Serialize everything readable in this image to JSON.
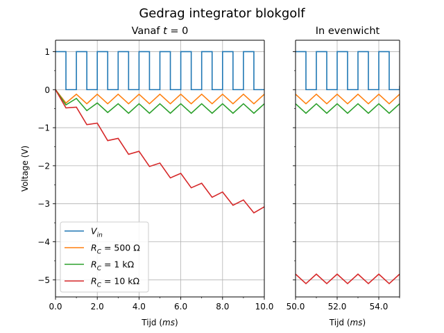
{
  "figure": {
    "title": "Gedrag integrator blokgolf"
  },
  "chart_data": [
    {
      "type": "line",
      "title": "Vanaf t = 0",
      "xlabel": "Tijd (ms)",
      "ylabel": "Voltage (V)",
      "xlim": [
        0.0,
        10.0
      ],
      "ylim": [
        -5.45,
        1.3
      ],
      "x_ticks": [
        {
          "value": 0.0,
          "label": "0.0"
        },
        {
          "value": 2.0,
          "label": "2.0"
        },
        {
          "value": 4.0,
          "label": "4.0"
        },
        {
          "value": 6.0,
          "label": "6.0"
        },
        {
          "value": 8.0,
          "label": "8.0"
        },
        {
          "value": 10.0,
          "label": "10.0"
        }
      ],
      "x_minor_ticks": [
        1,
        3,
        5,
        7,
        9
      ],
      "y_ticks": [
        {
          "value": 1,
          "label": "1"
        },
        {
          "value": 0,
          "label": "0"
        },
        {
          "value": -1,
          "label": "−1"
        },
        {
          "value": -2,
          "label": "−2"
        },
        {
          "value": -3,
          "label": "−3"
        },
        {
          "value": -4,
          "label": "−4"
        },
        {
          "value": -5,
          "label": "−5"
        }
      ],
      "y_minor_ticks": [
        0.5,
        -0.5,
        -1.5,
        -2.5,
        -3.5,
        -4.5
      ],
      "grid": true,
      "legend_position": "lower-left",
      "series": [
        {
          "key": "vin",
          "name": "V_in",
          "color": "#1f77b4",
          "step": true,
          "x": [
            0,
            0.5,
            1,
            1.5,
            2,
            2.5,
            3,
            3.5,
            4,
            4.5,
            5,
            5.5,
            6,
            6.5,
            7,
            7.5,
            8,
            8.5,
            9,
            9.5,
            10
          ],
          "y": [
            1,
            0,
            1,
            0,
            1,
            0,
            1,
            0,
            1,
            0,
            1,
            0,
            1,
            0,
            1,
            0,
            1,
            0,
            1,
            0,
            0
          ]
        },
        {
          "key": "r500",
          "name": "R_C = 500 Ω",
          "color": "#ff7f0e",
          "x": [
            0,
            0.5,
            1,
            1.5,
            2,
            2.5,
            3,
            3.5,
            4,
            4.5,
            5,
            5.5,
            6,
            6.5,
            7,
            7.5,
            8,
            8.5,
            9,
            9.5,
            10
          ],
          "y": [
            0,
            -0.35,
            -0.12,
            -0.37,
            -0.12,
            -0.37,
            -0.12,
            -0.37,
            -0.12,
            -0.37,
            -0.12,
            -0.37,
            -0.12,
            -0.37,
            -0.12,
            -0.37,
            -0.12,
            -0.37,
            -0.12,
            -0.37,
            -0.12
          ]
        },
        {
          "key": "r1k",
          "name": "R_C = 1 kΩ",
          "color": "#2ca02c",
          "x": [
            0,
            0.5,
            1,
            1.5,
            2,
            2.5,
            3,
            3.5,
            4,
            4.5,
            5,
            5.5,
            6,
            6.5,
            7,
            7.5,
            8,
            8.5,
            9,
            9.5,
            10
          ],
          "y": [
            0,
            -0.4,
            -0.23,
            -0.55,
            -0.35,
            -0.6,
            -0.37,
            -0.62,
            -0.37,
            -0.62,
            -0.37,
            -0.62,
            -0.37,
            -0.62,
            -0.37,
            -0.62,
            -0.37,
            -0.62,
            -0.37,
            -0.62,
            -0.37
          ]
        },
        {
          "key": "r10k",
          "name": "R_C = 10 kΩ",
          "color": "#d62728",
          "x": [
            0,
            0.5,
            1,
            1.5,
            2,
            2.5,
            3,
            3.5,
            4,
            4.5,
            5,
            5.5,
            6,
            6.5,
            7,
            7.5,
            8,
            8.5,
            9,
            9.5,
            10
          ],
          "y": [
            0,
            -0.48,
            -0.46,
            -0.92,
            -0.88,
            -1.34,
            -1.28,
            -1.7,
            -1.62,
            -2.02,
            -1.93,
            -2.32,
            -2.2,
            -2.58,
            -2.46,
            -2.83,
            -2.69,
            -3.04,
            -2.9,
            -3.24,
            -3.08
          ]
        }
      ]
    },
    {
      "type": "line",
      "title": "In evenwicht",
      "xlabel": "Tijd (ms)",
      "ylabel": "",
      "xlim": [
        50.0,
        55.0
      ],
      "ylim": [
        -5.45,
        1.3
      ],
      "x_ticks": [
        {
          "value": 50.0,
          "label": "50.0"
        },
        {
          "value": 52.0,
          "label": "52.0"
        },
        {
          "value": 54.0,
          "label": "54.0"
        }
      ],
      "x_minor_ticks": [
        51,
        53,
        55
      ],
      "y_ticks": [
        {
          "value": 1,
          "label": ""
        },
        {
          "value": 0,
          "label": ""
        },
        {
          "value": -1,
          "label": ""
        },
        {
          "value": -2,
          "label": ""
        },
        {
          "value": -3,
          "label": ""
        },
        {
          "value": -4,
          "label": ""
        },
        {
          "value": -5,
          "label": ""
        }
      ],
      "y_minor_ticks": [
        0.5,
        -0.5,
        -1.5,
        -2.5,
        -3.5,
        -4.5
      ],
      "grid": true,
      "series": [
        {
          "key": "vin",
          "color": "#1f77b4",
          "step": true,
          "x": [
            50,
            50.5,
            51,
            51.5,
            52,
            52.5,
            53,
            53.5,
            54,
            54.5,
            55
          ],
          "y": [
            1,
            0,
            1,
            0,
            1,
            0,
            1,
            0,
            1,
            0,
            0.1
          ]
        },
        {
          "key": "r500",
          "color": "#ff7f0e",
          "x": [
            50,
            50.5,
            51,
            51.5,
            52,
            52.5,
            53,
            53.5,
            54,
            54.5,
            55
          ],
          "y": [
            -0.12,
            -0.37,
            -0.12,
            -0.37,
            -0.12,
            -0.37,
            -0.12,
            -0.37,
            -0.12,
            -0.37,
            -0.12
          ]
        },
        {
          "key": "r1k",
          "color": "#2ca02c",
          "x": [
            50,
            50.5,
            51,
            51.5,
            52,
            52.5,
            53,
            53.5,
            54,
            54.5,
            55
          ],
          "y": [
            -0.37,
            -0.62,
            -0.37,
            -0.62,
            -0.37,
            -0.62,
            -0.37,
            -0.62,
            -0.37,
            -0.62,
            -0.37
          ]
        },
        {
          "key": "r10k",
          "color": "#d62728",
          "x": [
            50,
            50.5,
            51,
            51.5,
            52,
            52.5,
            53,
            53.5,
            54,
            54.5,
            55
          ],
          "y": [
            -4.85,
            -5.1,
            -4.85,
            -5.1,
            -4.85,
            -5.1,
            -4.85,
            -5.1,
            -4.85,
            -5.1,
            -4.85
          ]
        }
      ]
    }
  ]
}
